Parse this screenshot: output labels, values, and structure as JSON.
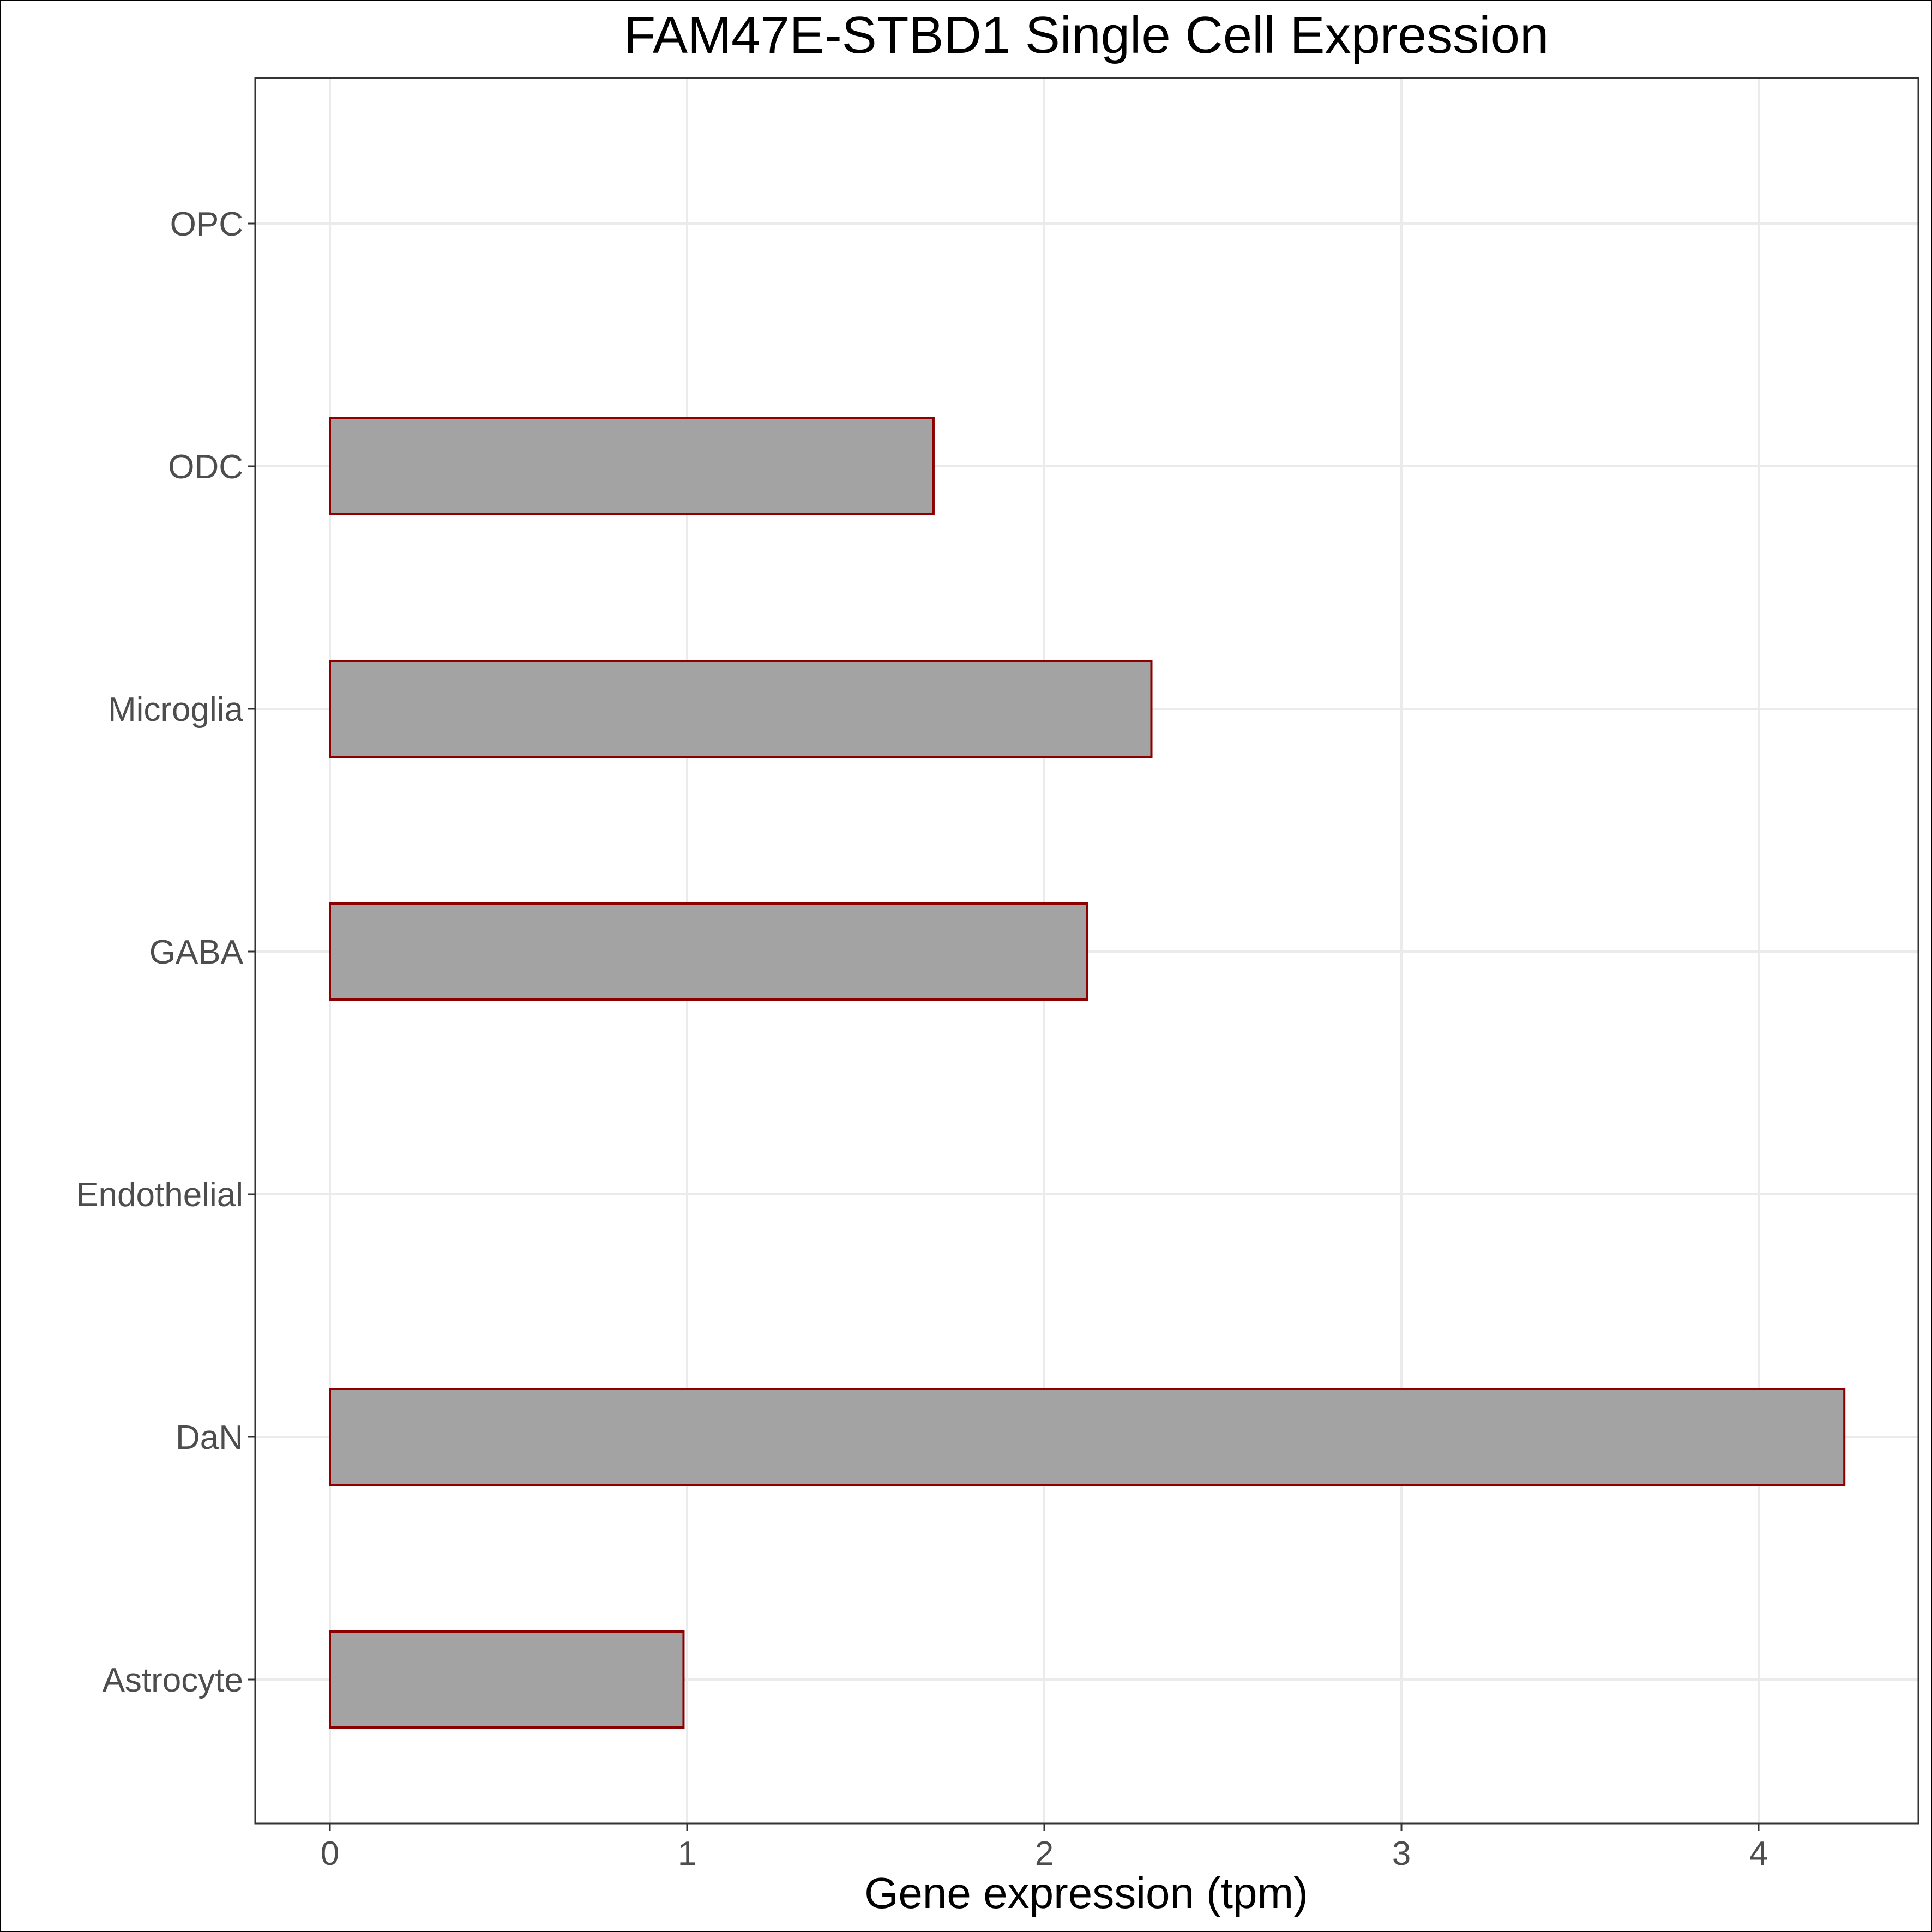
{
  "chart_data": {
    "type": "bar",
    "orientation": "horizontal",
    "title": "FAM47E-STBD1 Single Cell Expression",
    "xlabel": "Gene expression (tpm)",
    "ylabel": "",
    "categories": [
      "Astrocyte",
      "DaN",
      "Endothelial",
      "GABA",
      "Microglia",
      "ODC",
      "OPC"
    ],
    "values": [
      0.99,
      4.24,
      0.0,
      2.12,
      2.3,
      1.69,
      0.0
    ],
    "xlim": [
      -0.21,
      4.44
    ],
    "xticks": [
      0,
      1,
      2,
      3,
      4
    ],
    "grid": true,
    "colors": {
      "bar_fill": "#a3a3a3",
      "bar_stroke": "#8b0000",
      "grid": "#ebebeb",
      "panel_border": "#333333",
      "tick_text": "#4d4d4d"
    }
  }
}
